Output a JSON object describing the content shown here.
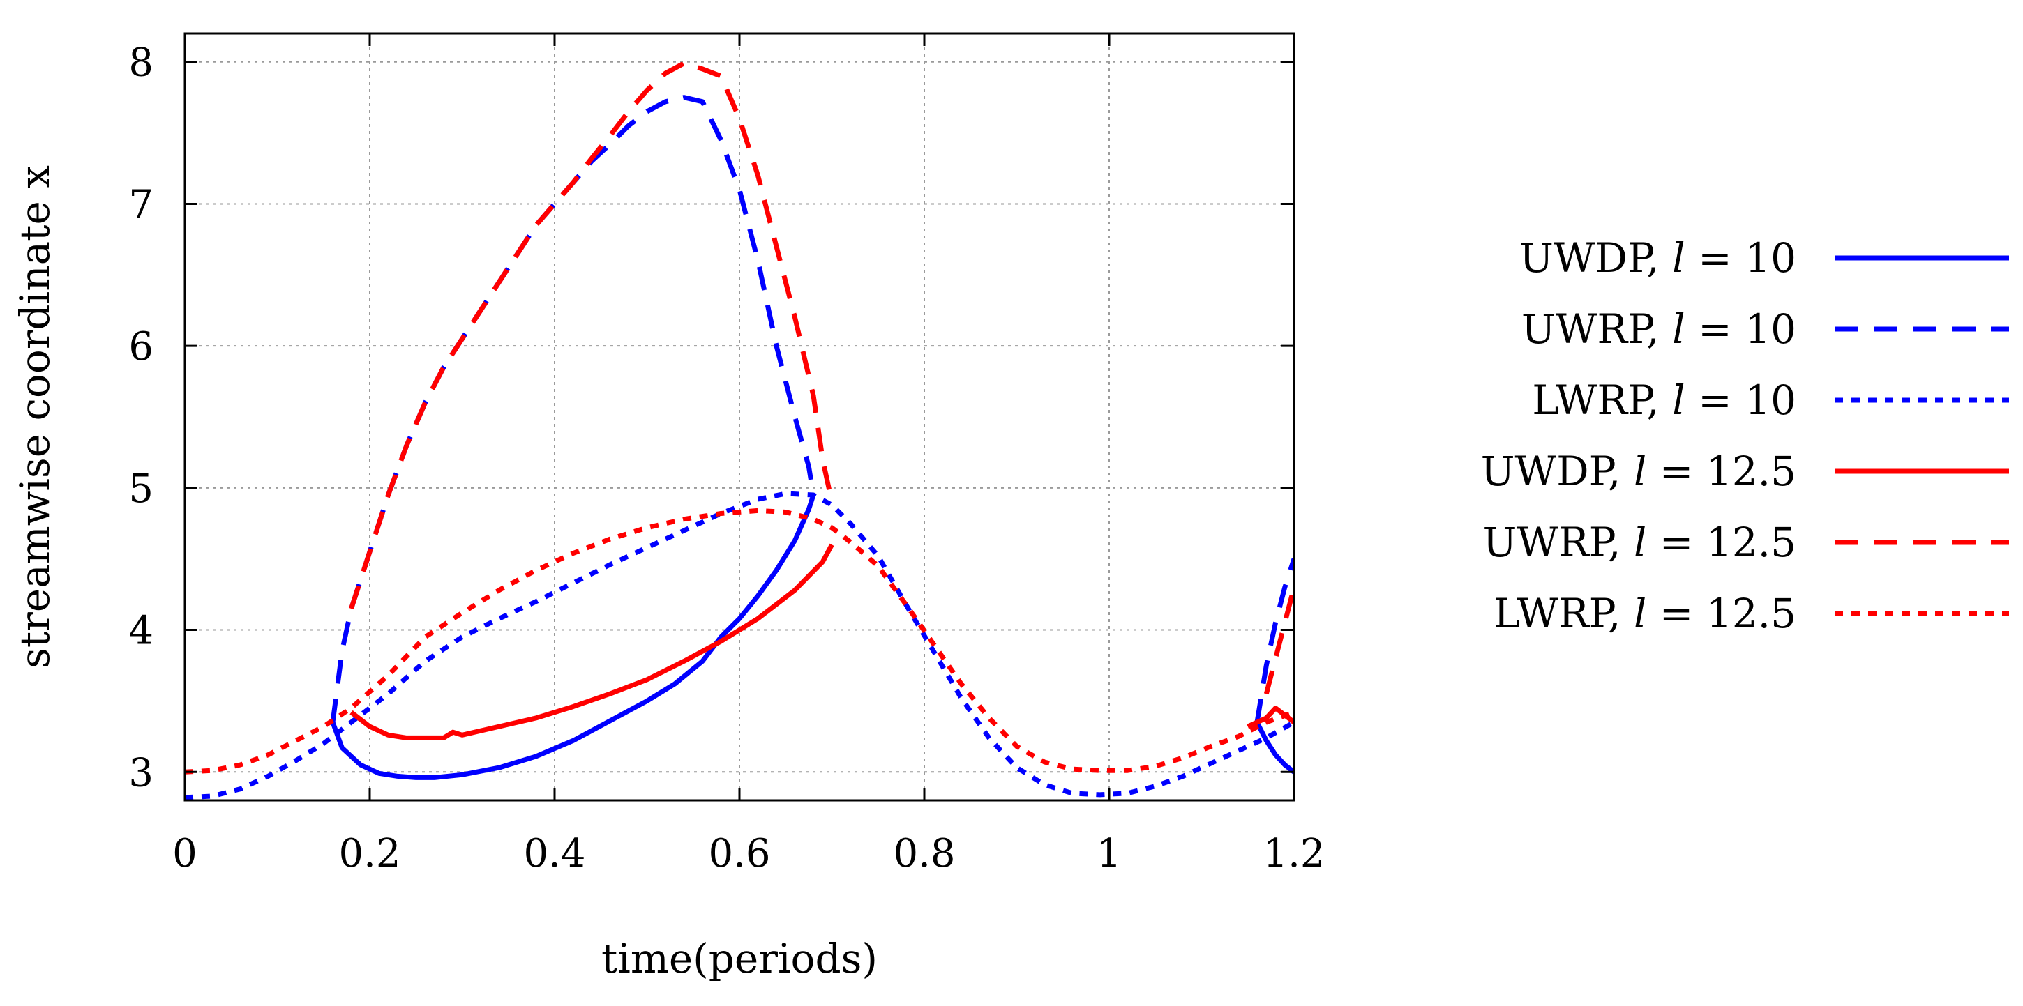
{
  "chart_data": {
    "type": "line",
    "title": "",
    "xlabel": "time(periods)",
    "ylabel": "streamwise coordinate x",
    "xlim": [
      0,
      1.2
    ],
    "ylim": [
      2.8,
      8.2
    ],
    "xticks": [
      0,
      0.2,
      0.4,
      0.6,
      0.8,
      1,
      1.2
    ],
    "yticks": [
      3,
      4,
      5,
      6,
      7,
      8
    ],
    "xtick_labels": [
      "0",
      "0.2",
      "0.4",
      "0.6",
      "0.8",
      "1",
      "1.2"
    ],
    "ytick_labels": [
      "3",
      "4",
      "5",
      "6",
      "7",
      "8"
    ],
    "grid": true,
    "legend_position": "right",
    "series": [
      {
        "name": "UWDP, l = 10",
        "label_text": "UWDP,",
        "l_value": "10",
        "color": "#0000ff",
        "style": "solid",
        "segments": [
          {
            "x": [
              0.16,
              0.17,
              0.19,
              0.21,
              0.23,
              0.25,
              0.27,
              0.3,
              0.34,
              0.38,
              0.42,
              0.46,
              0.5,
              0.53,
              0.56,
              0.58,
              0.6,
              0.62,
              0.64,
              0.66,
              0.675,
              0.68
            ],
            "y": [
              3.35,
              3.17,
              3.05,
              2.99,
              2.97,
              2.96,
              2.96,
              2.98,
              3.03,
              3.11,
              3.22,
              3.36,
              3.5,
              3.62,
              3.78,
              3.95,
              4.08,
              4.24,
              4.42,
              4.63,
              4.85,
              4.95
            ]
          },
          {
            "x": [
              1.16,
              1.17,
              1.18,
              1.19,
              1.2
            ],
            "y": [
              3.35,
              3.22,
              3.12,
              3.05,
              3.0
            ]
          }
        ]
      },
      {
        "name": "UWRP, l = 10",
        "label_text": "UWRP,",
        "l_value": "10",
        "color": "#0000ff",
        "style": "dashed",
        "segments": [
          {
            "x": [
              0.16,
              0.17,
              0.18,
              0.19,
              0.2,
              0.22,
              0.24,
              0.26,
              0.28,
              0.3,
              0.32,
              0.34,
              0.36,
              0.38,
              0.4,
              0.42,
              0.44,
              0.46,
              0.48,
              0.5,
              0.52,
              0.54,
              0.56,
              0.58,
              0.6,
              0.62,
              0.64,
              0.66,
              0.675,
              0.68
            ],
            "y": [
              3.35,
              3.85,
              4.15,
              4.35,
              4.55,
              4.95,
              5.3,
              5.6,
              5.85,
              6.05,
              6.25,
              6.45,
              6.65,
              6.85,
              7.0,
              7.15,
              7.3,
              7.42,
              7.55,
              7.65,
              7.72,
              7.75,
              7.72,
              7.45,
              7.1,
              6.6,
              6.0,
              5.5,
              5.15,
              4.95
            ]
          },
          {
            "x": [
              1.16,
              1.17,
              1.18,
              1.19,
              1.2
            ],
            "y": [
              3.35,
              3.75,
              4.05,
              4.3,
              4.5
            ]
          }
        ]
      },
      {
        "name": "LWRP, l = 10",
        "label_text": "LWRP,",
        "l_value": "10",
        "color": "#0000ff",
        "style": "dotted",
        "segments": [
          {
            "x": [
              0.0,
              0.03,
              0.06,
              0.09,
              0.12,
              0.15,
              0.18,
              0.22,
              0.26,
              0.3,
              0.34,
              0.38,
              0.42,
              0.46,
              0.5,
              0.54,
              0.58,
              0.62,
              0.65,
              0.68,
              0.7,
              0.72,
              0.75,
              0.78,
              0.81,
              0.84,
              0.87,
              0.9,
              0.93,
              0.96,
              0.99,
              1.02,
              1.05,
              1.08,
              1.11,
              1.14,
              1.17,
              1.2
            ],
            "y": [
              2.82,
              2.83,
              2.88,
              2.97,
              3.08,
              3.2,
              3.35,
              3.55,
              3.78,
              3.95,
              4.08,
              4.2,
              4.33,
              4.46,
              4.58,
              4.7,
              4.82,
              4.92,
              4.96,
              4.95,
              4.88,
              4.75,
              4.52,
              4.18,
              3.85,
              3.52,
              3.24,
              3.03,
              2.91,
              2.85,
              2.84,
              2.85,
              2.9,
              2.97,
              3.06,
              3.15,
              3.24,
              3.35
            ]
          }
        ]
      },
      {
        "name": "UWDP, l = 12.5",
        "label_text": "UWDP,",
        "l_value": "12.5",
        "color": "#ff0000",
        "style": "solid",
        "segments": [
          {
            "x": [
              0.18,
              0.2,
              0.22,
              0.24,
              0.26,
              0.28,
              0.29,
              0.3,
              0.34,
              0.38,
              0.42,
              0.46,
              0.5,
              0.54,
              0.58,
              0.62,
              0.66,
              0.69,
              0.7
            ],
            "y": [
              3.42,
              3.32,
              3.26,
              3.24,
              3.24,
              3.24,
              3.28,
              3.26,
              3.32,
              3.38,
              3.46,
              3.55,
              3.65,
              3.78,
              3.92,
              4.08,
              4.28,
              4.48,
              4.6
            ]
          },
          {
            "x": [
              1.15,
              1.17,
              1.18,
              1.19,
              1.2
            ],
            "y": [
              3.32,
              3.38,
              3.45,
              3.4,
              3.35
            ]
          }
        ]
      },
      {
        "name": "UWRP, l = 12.5",
        "label_text": "UWRP,",
        "l_value": "12.5",
        "color": "#ff0000",
        "style": "dashed",
        "segments": [
          {
            "x": [
              0.18,
              0.19,
              0.2,
              0.22,
              0.24,
              0.26,
              0.28,
              0.3,
              0.32,
              0.34,
              0.36,
              0.38,
              0.4,
              0.42,
              0.44,
              0.46,
              0.48,
              0.5,
              0.52,
              0.54,
              0.56,
              0.58,
              0.6,
              0.62,
              0.64,
              0.66,
              0.68,
              0.69,
              0.7
            ],
            "y": [
              4.15,
              4.35,
              4.55,
              4.95,
              5.3,
              5.6,
              5.85,
              6.05,
              6.25,
              6.45,
              6.65,
              6.85,
              7.0,
              7.15,
              7.32,
              7.48,
              7.65,
              7.8,
              7.92,
              7.99,
              7.95,
              7.9,
              7.6,
              7.2,
              6.7,
              6.2,
              5.65,
              5.2,
              4.9
            ]
          },
          {
            "x": [
              1.17,
              1.18,
              1.19,
              1.2
            ],
            "y": [
              3.55,
              3.8,
              4.05,
              4.3
            ]
          }
        ]
      },
      {
        "name": "LWRP, l = 12.5",
        "label_text": "LWRP,",
        "l_value": "12.5",
        "color": "#ff0000",
        "style": "dotted",
        "segments": [
          {
            "x": [
              0.0,
              0.03,
              0.06,
              0.09,
              0.12,
              0.15,
              0.18,
              0.22,
              0.26,
              0.3,
              0.34,
              0.38,
              0.42,
              0.46,
              0.5,
              0.54,
              0.58,
              0.62,
              0.65,
              0.68,
              0.7,
              0.72,
              0.75,
              0.78,
              0.81,
              0.84,
              0.87,
              0.9,
              0.93,
              0.96,
              0.99,
              1.02,
              1.05,
              1.08,
              1.11,
              1.14,
              1.17,
              1.2
            ],
            "y": [
              3.0,
              3.01,
              3.05,
              3.12,
              3.22,
              3.32,
              3.45,
              3.68,
              3.95,
              4.12,
              4.28,
              4.42,
              4.54,
              4.64,
              4.72,
              4.78,
              4.82,
              4.84,
              4.83,
              4.78,
              4.72,
              4.62,
              4.45,
              4.18,
              3.9,
              3.62,
              3.38,
              3.18,
              3.07,
              3.02,
              3.01,
              3.01,
              3.04,
              3.1,
              3.18,
              3.25,
              3.35,
              3.42
            ]
          }
        ]
      }
    ]
  }
}
